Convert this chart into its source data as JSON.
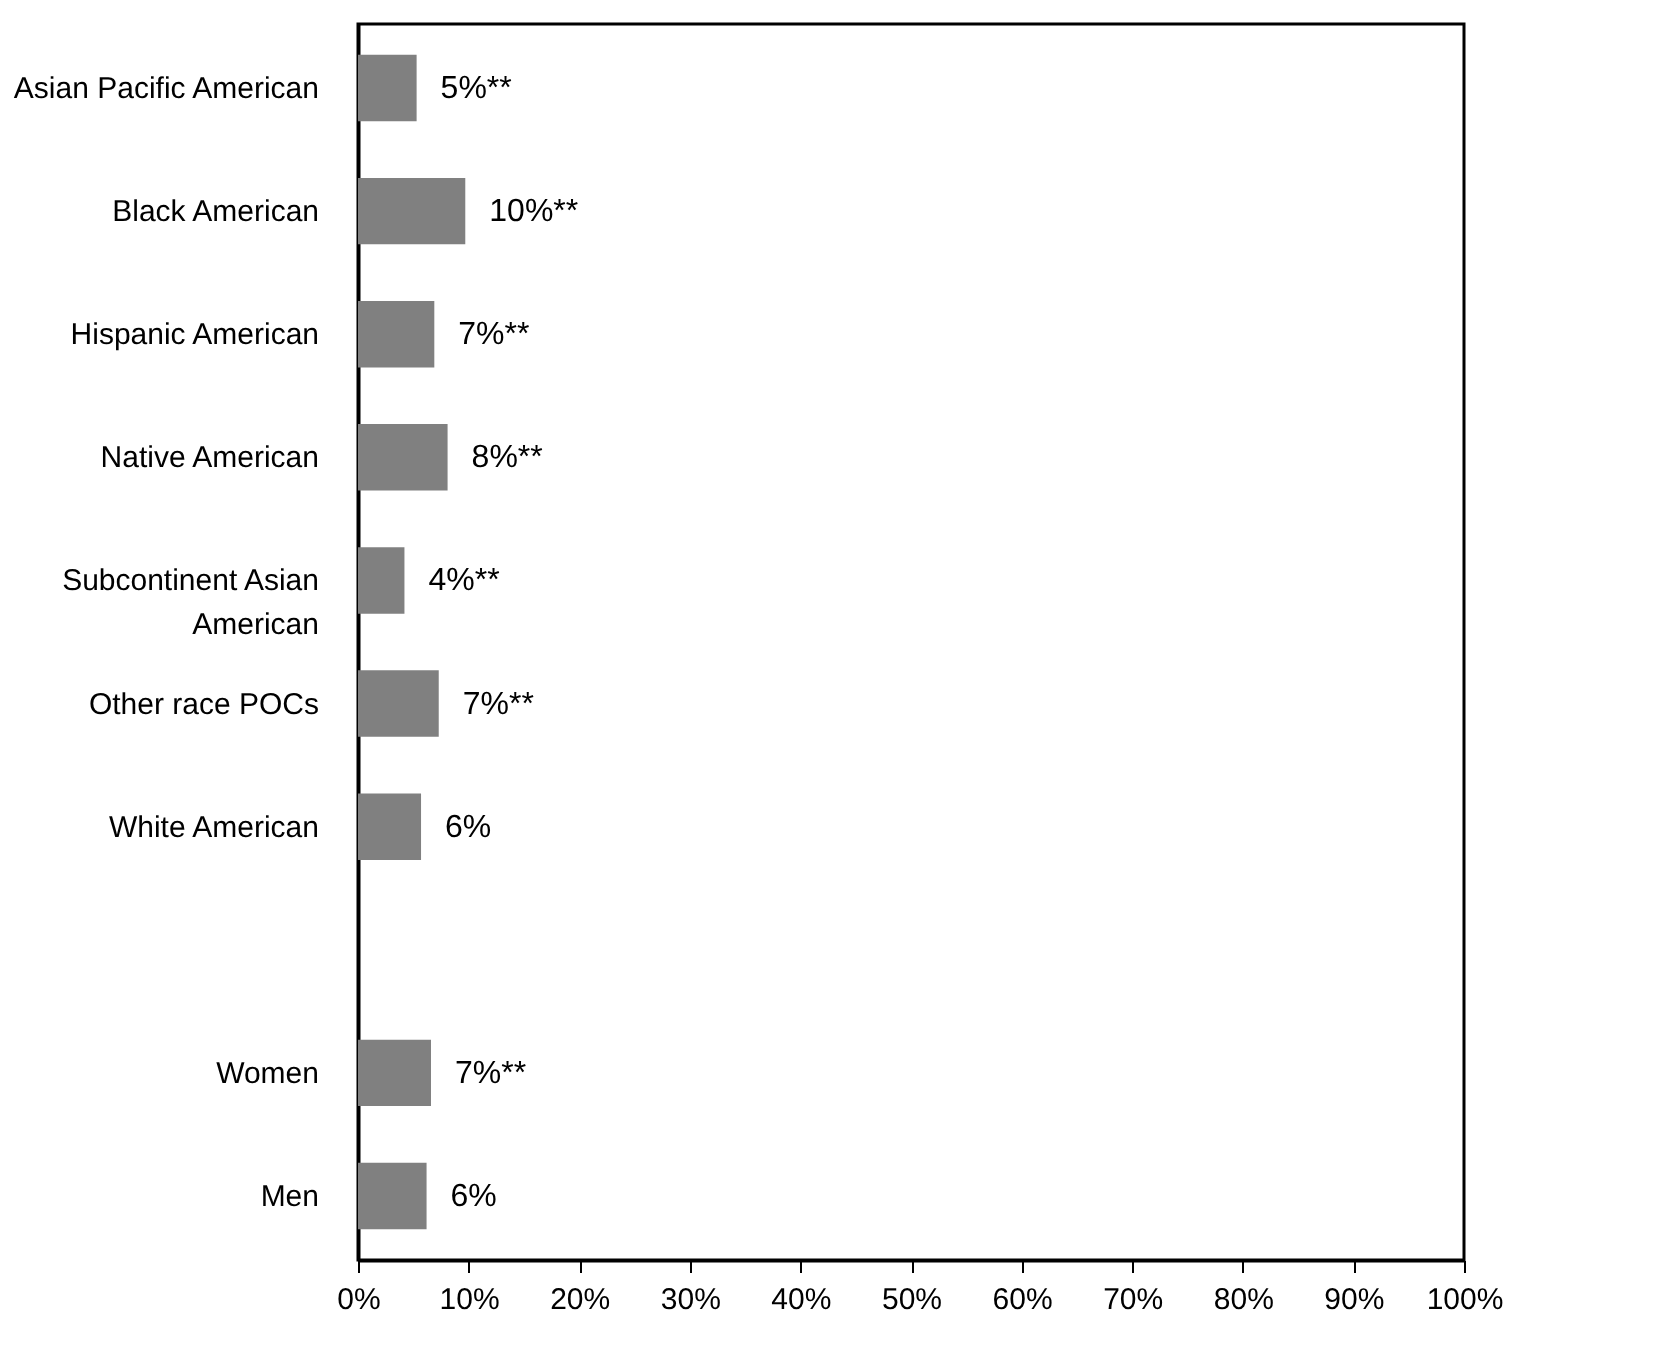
{
  "chart_data": {
    "type": "bar",
    "orientation": "horizontal",
    "categories": [
      "Asian Pacific American",
      "Black American",
      "Hispanic American",
      "Native American",
      "Subcontinent Asian American",
      "Other race POCs",
      "White American",
      null,
      "Women",
      "Men"
    ],
    "values": [
      5.3,
      9.7,
      6.9,
      8.1,
      4.2,
      7.3,
      5.7,
      null,
      6.6,
      6.2
    ],
    "value_labels": [
      "5%**",
      "10%**",
      "7%**",
      "8%**",
      "4%**",
      "7%**",
      "6%",
      null,
      "7%**",
      "6%"
    ],
    "color": "#808080",
    "xlim": [
      0,
      100
    ],
    "xticks": [
      {
        "value": 0,
        "label": "0%"
      },
      {
        "value": 10,
        "label": "10%"
      },
      {
        "value": 20,
        "label": "20%"
      },
      {
        "value": 30,
        "label": "30%"
      },
      {
        "value": 40,
        "label": "40%"
      },
      {
        "value": 50,
        "label": "50%"
      },
      {
        "value": 60,
        "label": "60%"
      },
      {
        "value": 70,
        "label": "70%"
      },
      {
        "value": 80,
        "label": "80%"
      },
      {
        "value": 90,
        "label": "90%"
      },
      {
        "value": 100,
        "label": "100%"
      }
    ],
    "grid": false
  }
}
